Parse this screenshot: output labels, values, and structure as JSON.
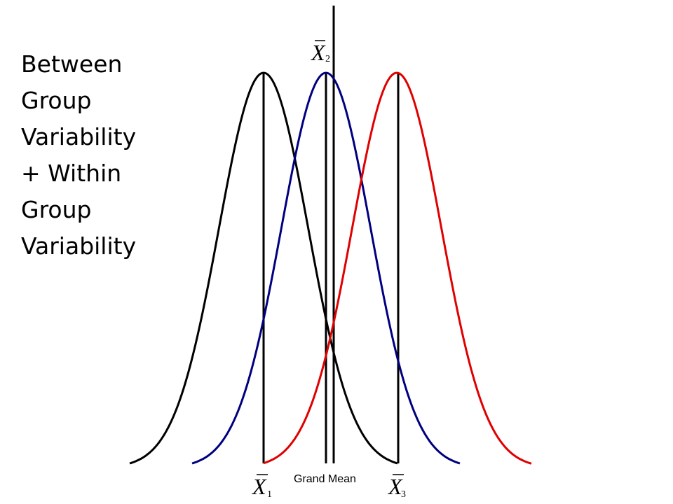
{
  "title_lines": [
    "Between",
    "Group",
    "Variability",
    "+ Within",
    "Group",
    "Variability"
  ],
  "grand_mean_label": "Grand Mean",
  "group_means": [
    {
      "letter": "X",
      "subscript": "1"
    },
    {
      "letter": "X",
      "subscript": "2"
    },
    {
      "letter": "X",
      "subscript": "3"
    }
  ],
  "colors": {
    "group1": "#000000",
    "group2": "#000080",
    "group3": "#e00000",
    "mean_lines": "#000000"
  }
}
